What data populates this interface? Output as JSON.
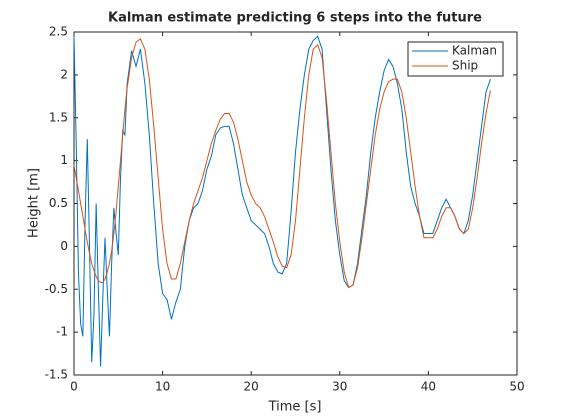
{
  "chart_data": {
    "type": "line",
    "title": "Kalman estimate predicting 6 steps into the future",
    "xlabel": "Time [s]",
    "ylabel": "Height [m]",
    "x": [
      0,
      0.25,
      0.5,
      0.75,
      1,
      1.25,
      1.5,
      1.75,
      2,
      2.25,
      2.5,
      2.75,
      3,
      3.25,
      3.5,
      3.75,
      4,
      4.25,
      4.5,
      4.75,
      5,
      5.25,
      5.5,
      5.75,
      6,
      6.5,
      7,
      7.5,
      8,
      8.5,
      9,
      9.5,
      10,
      10.5,
      11,
      11.5,
      12,
      12.5,
      13,
      13.5,
      14,
      14.5,
      15,
      15.5,
      16,
      16.5,
      17,
      17.5,
      18,
      18.5,
      19,
      19.5,
      20,
      20.5,
      21,
      21.5,
      22,
      22.5,
      23,
      23.5,
      24,
      24.5,
      25,
      25.5,
      26,
      26.5,
      27,
      27.5,
      28,
      28.5,
      29,
      29.5,
      30,
      30.5,
      31,
      31.5,
      32,
      32.5,
      33,
      33.5,
      34,
      34.5,
      35,
      35.5,
      36,
      36.5,
      37,
      37.5,
      38,
      38.5,
      39,
      39.5,
      40,
      40.5,
      41,
      41.5,
      42,
      42.5,
      43,
      43.5,
      44,
      44.5,
      45,
      45.5,
      46,
      46.5,
      47
    ],
    "series": [
      {
        "name": "Kalman",
        "color": "#0072bd",
        "values": [
          2.45,
          1.2,
          -0.3,
          -0.9,
          -1.05,
          0.3,
          1.25,
          0,
          -1.35,
          -0.8,
          0.5,
          -0.5,
          -1.4,
          -0.6,
          0.1,
          -0.5,
          -1.05,
          -0.2,
          0.45,
          0.15,
          -0.1,
          0.8,
          1.35,
          1.3,
          1.9,
          2.28,
          2.1,
          2.3,
          1.9,
          1.3,
          0.5,
          -0.2,
          -0.55,
          -0.62,
          -0.85,
          -0.65,
          -0.5,
          0,
          0.3,
          0.45,
          0.5,
          0.65,
          0.9,
          1.05,
          1.3,
          1.38,
          1.4,
          1.4,
          1.2,
          0.9,
          0.6,
          0.45,
          0.3,
          0.25,
          0.2,
          0.15,
          0,
          -0.2,
          -0.3,
          -0.32,
          -0.2,
          0.4,
          1.1,
          1.6,
          2.0,
          2.3,
          2.4,
          2.45,
          2.3,
          1.6,
          0.9,
          0.3,
          -0.1,
          -0.4,
          -0.48,
          -0.45,
          -0.2,
          0.2,
          0.6,
          1.1,
          1.5,
          1.8,
          2.05,
          2.18,
          2.1,
          1.9,
          1.6,
          1.1,
          0.7,
          0.5,
          0.35,
          0.15,
          0.15,
          0.15,
          0.3,
          0.45,
          0.55,
          0.45,
          0.35,
          0.2,
          0.15,
          0.3,
          0.6,
          1.0,
          1.4,
          1.8,
          1.95
        ]
      },
      {
        "name": "Ship",
        "color": "#d95319",
        "values": [
          0.95,
          0.8,
          0.65,
          0.5,
          0.35,
          0.2,
          0.05,
          -0.08,
          -0.2,
          -0.28,
          -0.35,
          -0.4,
          -0.42,
          -0.42,
          -0.38,
          -0.3,
          -0.2,
          -0.05,
          0.15,
          0.4,
          0.7,
          1.0,
          1.3,
          1.6,
          1.85,
          2.2,
          2.38,
          2.42,
          2.3,
          1.95,
          1.4,
          0.8,
          0.2,
          -0.2,
          -0.38,
          -0.38,
          -0.2,
          0.05,
          0.3,
          0.5,
          0.65,
          0.8,
          1.0,
          1.2,
          1.35,
          1.48,
          1.55,
          1.55,
          1.45,
          1.25,
          1.0,
          0.75,
          0.6,
          0.5,
          0.45,
          0.35,
          0.2,
          0.05,
          -0.12,
          -0.23,
          -0.25,
          -0.1,
          0.3,
          0.9,
          1.5,
          2.0,
          2.3,
          2.35,
          2.2,
          1.7,
          1.1,
          0.5,
          0.05,
          -0.3,
          -0.48,
          -0.45,
          -0.25,
          0.1,
          0.5,
          0.9,
          1.3,
          1.6,
          1.8,
          1.92,
          1.95,
          1.95,
          1.8,
          1.5,
          1.1,
          0.7,
          0.35,
          0.1,
          0.1,
          0.1,
          0.2,
          0.35,
          0.45,
          0.45,
          0.35,
          0.2,
          0.15,
          0.2,
          0.45,
          0.8,
          1.2,
          1.55,
          1.82
        ]
      }
    ],
    "xlim": [
      0,
      50
    ],
    "xticks": [
      0,
      10,
      20,
      30,
      40,
      50
    ],
    "ylim": [
      -1.5,
      2.5
    ],
    "yticks": [
      -1.5,
      -1,
      -0.5,
      0,
      0.5,
      1,
      1.5,
      2,
      2.5
    ],
    "legend": "northeast"
  }
}
